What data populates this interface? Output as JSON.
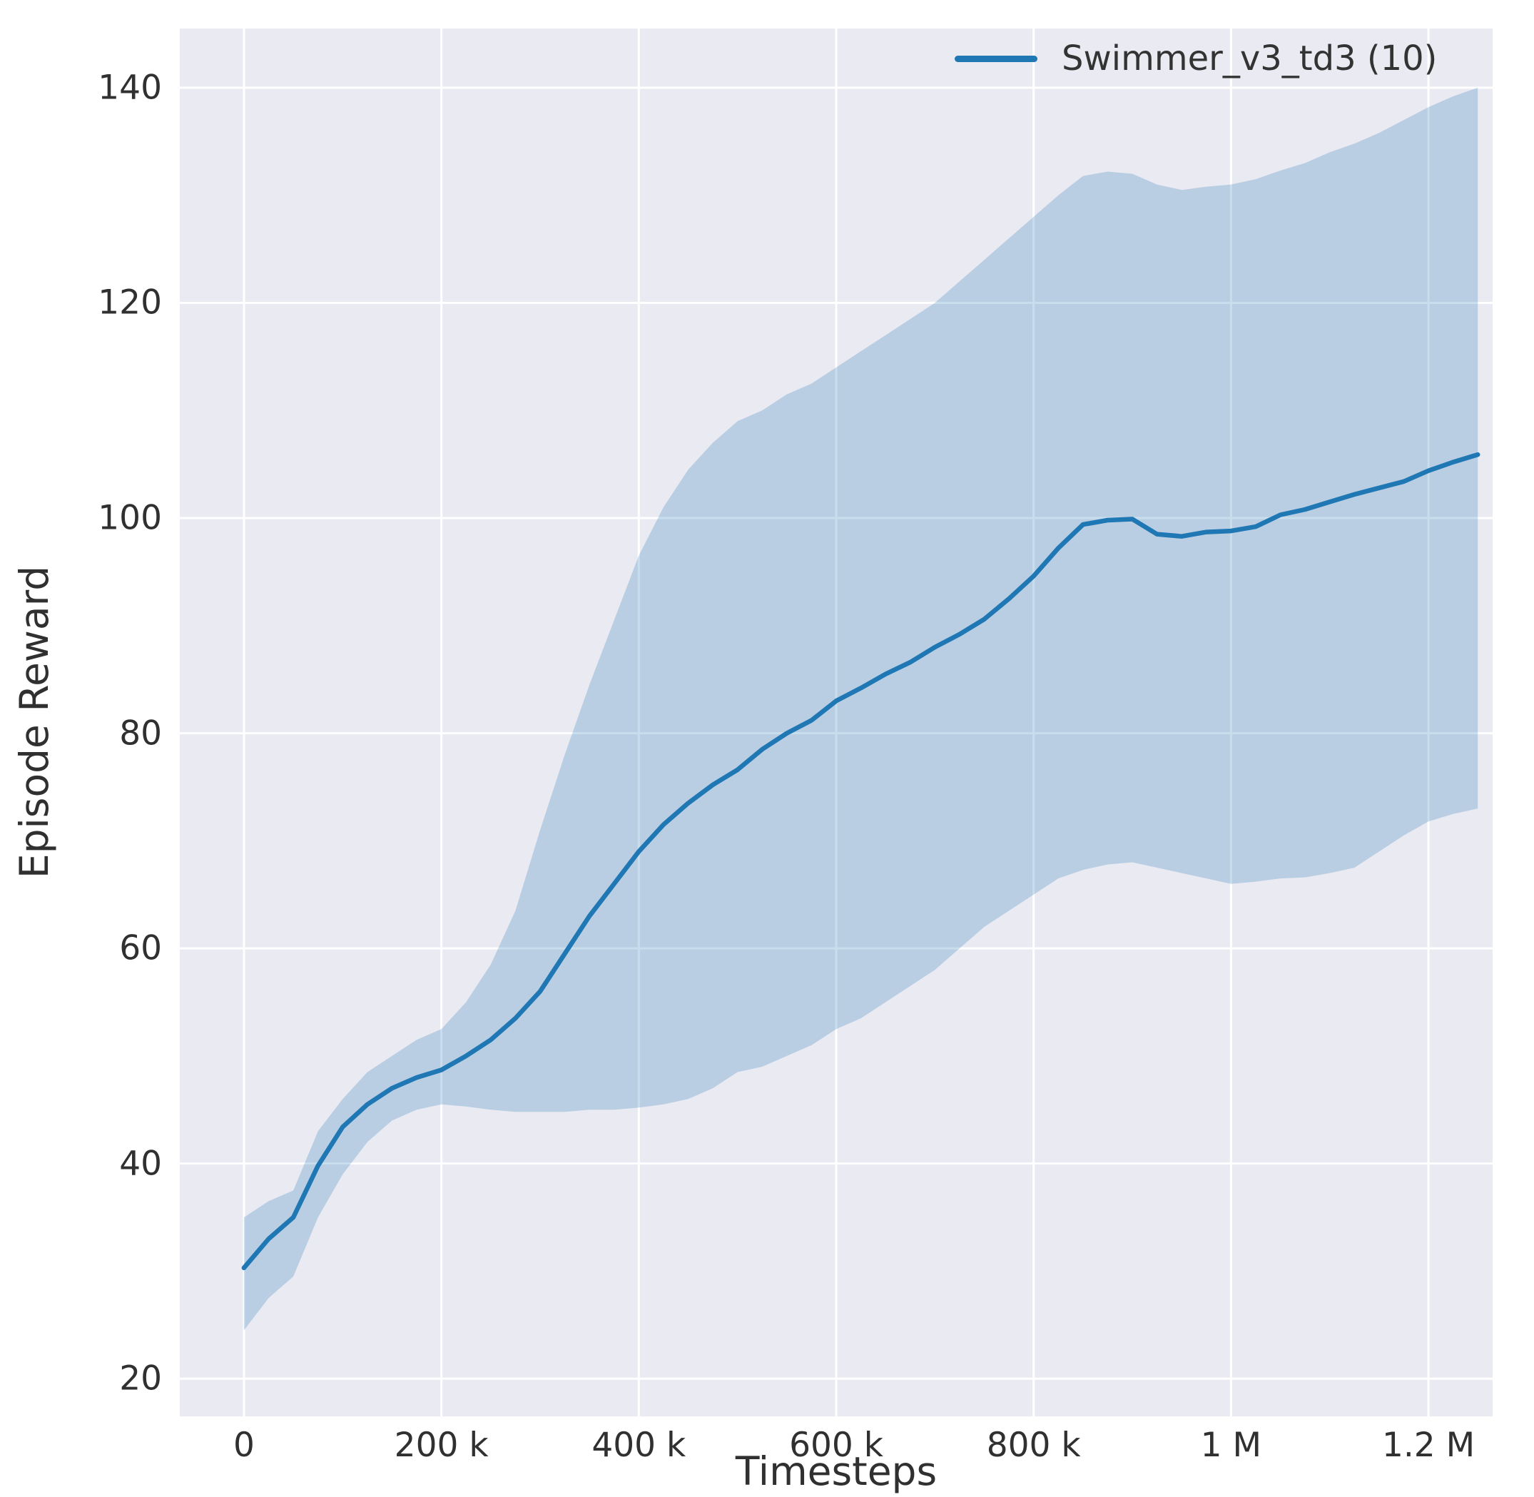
{
  "chart_data": {
    "type": "line",
    "title": "",
    "xlabel": "Timesteps",
    "ylabel": "Episode Reward",
    "legend_position": "upper right",
    "grid": true,
    "xlim": [
      -65000,
      1265000
    ],
    "ylim": [
      16.5,
      145.5
    ],
    "x_ticks": [
      0,
      200000,
      400000,
      600000,
      800000,
      1000000,
      1200000
    ],
    "x_tick_labels": [
      "0",
      "200 k",
      "400 k",
      "600 k",
      "800 k",
      "1 M",
      "1.2 M"
    ],
    "y_ticks": [
      20,
      40,
      60,
      80,
      100,
      120,
      140
    ],
    "y_tick_labels": [
      "20",
      "40",
      "60",
      "80",
      "100",
      "120",
      "140"
    ],
    "colors": {
      "line": "#1f77b4",
      "band": "#1f77b4",
      "band_opacity": 0.24,
      "axes_background": "#eaeaf2",
      "grid": "#ffffff",
      "text": "#303030"
    },
    "series": [
      {
        "name": "Swimmer_v3_td3 (10)",
        "x": [
          0,
          25000,
          50000,
          75000,
          100000,
          125000,
          150000,
          175000,
          200000,
          225000,
          250000,
          275000,
          300000,
          325000,
          350000,
          375000,
          400000,
          425000,
          450000,
          475000,
          500000,
          525000,
          550000,
          575000,
          600000,
          625000,
          650000,
          675000,
          700000,
          725000,
          750000,
          775000,
          800000,
          825000,
          850000,
          875000,
          900000,
          925000,
          950000,
          975000,
          1000000,
          1025000,
          1050000,
          1075000,
          1100000,
          1125000,
          1150000,
          1175000,
          1200000,
          1225000,
          1250000
        ],
        "mean": [
          30.3,
          33.0,
          35.0,
          39.8,
          43.4,
          45.5,
          47.0,
          48.0,
          48.7,
          50.0,
          51.5,
          53.5,
          56.0,
          59.5,
          63.0,
          66.0,
          69.0,
          71.5,
          73.5,
          75.2,
          76.6,
          78.5,
          80.0,
          81.2,
          83.0,
          84.2,
          85.5,
          86.6,
          88.0,
          89.2,
          90.6,
          92.5,
          94.6,
          97.2,
          99.4,
          99.8,
          99.9,
          98.5,
          98.3,
          98.7,
          98.8,
          99.2,
          100.3,
          100.8,
          101.5,
          102.2,
          102.8,
          103.4,
          104.4,
          105.2,
          105.9
        ],
        "lower": [
          24.5,
          27.5,
          29.5,
          35.0,
          39.0,
          42.0,
          44.0,
          45.0,
          45.5,
          45.3,
          45.0,
          44.8,
          44.8,
          44.8,
          45.0,
          45.0,
          45.2,
          45.5,
          46.0,
          47.0,
          48.5,
          49.0,
          50.0,
          51.0,
          52.5,
          53.5,
          55.0,
          56.5,
          58.0,
          60.0,
          62.0,
          63.5,
          65.0,
          66.5,
          67.3,
          67.8,
          68.0,
          67.5,
          67.0,
          66.5,
          66.0,
          66.2,
          66.5,
          66.6,
          67.0,
          67.5,
          69.0,
          70.5,
          71.8,
          72.5,
          73.0
        ],
        "upper": [
          35.0,
          36.5,
          37.5,
          43.0,
          46.0,
          48.5,
          50.0,
          51.5,
          52.5,
          55.0,
          58.5,
          63.5,
          71.0,
          78.0,
          84.5,
          90.5,
          96.5,
          101.0,
          104.5,
          107.0,
          109.0,
          110.0,
          111.5,
          112.5,
          114.0,
          115.5,
          117.0,
          118.5,
          120.0,
          122.0,
          124.0,
          126.0,
          128.0,
          130.0,
          131.8,
          132.2,
          132.0,
          131.0,
          130.5,
          130.8,
          131.0,
          131.5,
          132.3,
          133.0,
          134.0,
          134.8,
          135.8,
          137.0,
          138.2,
          139.2,
          140.0
        ]
      }
    ]
  }
}
